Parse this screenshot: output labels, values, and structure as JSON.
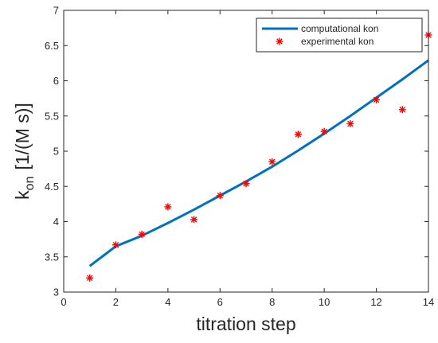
{
  "chart_data": {
    "type": "line",
    "title": "",
    "xlabel": "titration step",
    "ylabel_main": "k",
    "ylabel_sub": "on",
    "ylabel_unit": "[1/(M s)]",
    "xlim": [
      0,
      14
    ],
    "ylim": [
      3,
      7
    ],
    "xticks": [
      0,
      2,
      4,
      6,
      8,
      10,
      12,
      14
    ],
    "yticks": [
      3,
      3.5,
      4,
      4.5,
      5,
      5.5,
      6,
      6.5,
      7
    ],
    "xtick_labels": [
      "0",
      "2",
      "4",
      "6",
      "8",
      "10",
      "12",
      "14"
    ],
    "ytick_labels": [
      "3",
      "3.5",
      "4",
      "4.5",
      "5",
      "5.5",
      "6",
      "6.5",
      "7"
    ],
    "grid": false,
    "legend_position": "top-right",
    "series": [
      {
        "name": "computational kon",
        "kind": "line",
        "color": "#0072BD",
        "x": [
          1,
          2,
          3,
          4,
          5,
          6,
          7,
          8,
          9,
          10,
          11,
          12,
          13,
          14
        ],
        "y": [
          3.37,
          3.65,
          3.8,
          3.98,
          4.17,
          4.37,
          4.57,
          4.78,
          5.01,
          5.25,
          5.5,
          5.76,
          6.02,
          6.29
        ]
      },
      {
        "name": "experimental kon",
        "kind": "scatter",
        "marker": "*",
        "color": "#FF0000",
        "x": [
          1,
          2,
          3,
          4,
          5,
          6,
          7,
          8,
          9,
          10,
          11,
          12,
          13,
          14
        ],
        "y": [
          3.2,
          3.67,
          3.82,
          4.21,
          4.03,
          4.37,
          4.54,
          4.85,
          5.24,
          5.28,
          5.39,
          5.73,
          5.59,
          6.65
        ]
      }
    ]
  }
}
